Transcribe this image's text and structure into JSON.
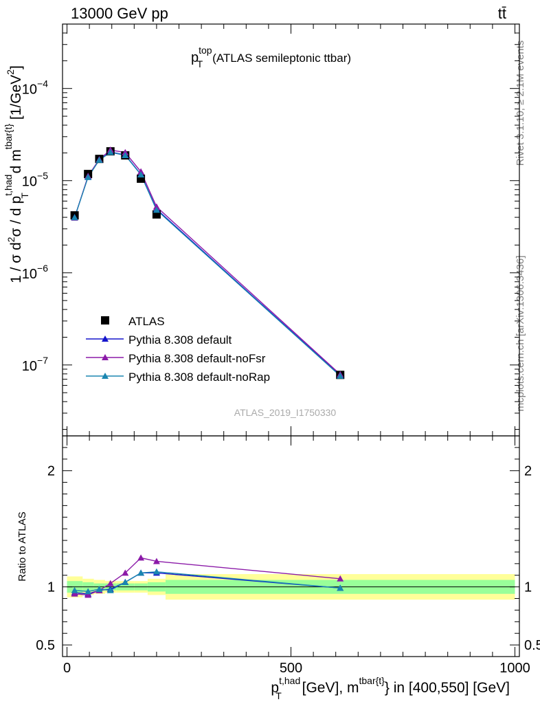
{
  "header": {
    "left": "13000 GeV pp",
    "right": "tt̄"
  },
  "side_labels": {
    "rivet": "Rivet 3.1.10, ≥ 2.1M events",
    "mcplots": "mcplots.cern.ch [arXiv:1306.3436]"
  },
  "watermark": "ATLAS_2019_I1750330",
  "chart_data": [
    {
      "type": "line",
      "panel": "main",
      "title": {
        "base": "p",
        "sup": "top",
        "sub": "T",
        "rest": "(ATLAS semileptonic ttbar)"
      },
      "ylabel": {
        "p1": "1 / σ d",
        "p1_sup": "2",
        "p2": "σ / d p",
        "p2_sup": "t,had",
        "p2_sub": "T",
        "p3": " d m",
        "p3_sup": "tbar{t}",
        "p4": " [1/GeV",
        "p4_sup": "2",
        "p5": "]"
      },
      "yscale": "log",
      "ylim": [
        1.7e-08,
        0.0005
      ],
      "xlim": [
        -10,
        1010
      ],
      "yticks": [
        {
          "value": 1e-07,
          "base": "10",
          "exp": "−7"
        },
        {
          "value": 1e-06,
          "base": "10",
          "exp": "−6"
        },
        {
          "value": 1e-05,
          "base": "10",
          "exp": "−5"
        },
        {
          "value": 0.0001,
          "base": "10",
          "exp": "−4"
        }
      ],
      "legend_position": "bottom-left",
      "data": {
        "name": "ATLAS",
        "color": "#000000",
        "marker": "square",
        "x": [
          17,
          47,
          72,
          97,
          130,
          165,
          200,
          610
        ],
        "y": [
          4.2e-06,
          1.18e-05,
          1.72e-05,
          2.08e-05,
          1.88e-05,
          1.05e-05,
          4.3e-06,
          7.8e-08
        ]
      },
      "series": [
        {
          "name": "Pythia 8.308 default",
          "color": "#1414cc",
          "marker": "triangle",
          "x": [
            17,
            47,
            72,
            97,
            130,
            165,
            200,
            610
          ],
          "y": [
            4e-06,
            1.1e-05,
            1.68e-05,
            2.05e-05,
            1.9e-05,
            1.17e-05,
            4.9e-06,
            7.7e-08
          ]
        },
        {
          "name": "Pythia 8.308 default-noFsr",
          "color": "#8b1aa8",
          "marker": "triangle",
          "x": [
            17,
            47,
            72,
            97,
            130,
            165,
            200,
            610
          ],
          "y": [
            3.95e-06,
            1.12e-05,
            1.7e-05,
            2.15e-05,
            2.02e-05,
            1.25e-05,
            5.2e-06,
            7.9e-08
          ]
        },
        {
          "name": "Pythia 8.308 default-noRap",
          "color": "#1a86b0",
          "marker": "triangle",
          "x": [
            17,
            47,
            72,
            97,
            130,
            165,
            200,
            610
          ],
          "y": [
            3.98e-06,
            1.09e-05,
            1.67e-05,
            2.03e-05,
            1.88e-05,
            1.16e-05,
            4.8e-06,
            7.6e-08
          ]
        }
      ]
    },
    {
      "type": "line",
      "panel": "ratio",
      "ylabel": "Ratio to ATLAS",
      "yscale": "linear",
      "ylim": [
        0.4,
        2.3
      ],
      "xlim": [
        -10,
        1010
      ],
      "yticks": [
        0.5,
        1,
        2
      ],
      "ytick_labels": [
        "0.5",
        "1",
        "2"
      ],
      "xticks": [
        0,
        500,
        1000
      ],
      "xtick_labels": [
        "0",
        "500",
        "1000"
      ],
      "xlabel": {
        "base": "p",
        "sup": "t,had",
        "sub": "T",
        "mid": " [GeV], m",
        "sup2": "tbar{t}",
        "rest": "} in [400,550] [GeV]"
      },
      "bands": {
        "stat_color": "#99ff99",
        "total_color": "#ffff99",
        "bins": [
          {
            "lo": 0,
            "hi": 35,
            "inner": [
              0.95,
              1.05
            ],
            "outer": [
              0.91,
              1.09
            ]
          },
          {
            "lo": 35,
            "hi": 60,
            "inner": [
              0.96,
              1.04
            ],
            "outer": [
              0.93,
              1.07
            ]
          },
          {
            "lo": 60,
            "hi": 85,
            "inner": [
              0.97,
              1.03
            ],
            "outer": [
              0.94,
              1.06
            ]
          },
          {
            "lo": 85,
            "hi": 110,
            "inner": [
              0.97,
              1.03
            ],
            "outer": [
              0.95,
              1.05
            ]
          },
          {
            "lo": 110,
            "hi": 150,
            "inner": [
              0.97,
              1.03
            ],
            "outer": [
              0.95,
              1.05
            ]
          },
          {
            "lo": 150,
            "hi": 180,
            "inner": [
              0.97,
              1.03
            ],
            "outer": [
              0.95,
              1.05
            ]
          },
          {
            "lo": 180,
            "hi": 220,
            "inner": [
              0.96,
              1.04
            ],
            "outer": [
              0.93,
              1.07
            ]
          },
          {
            "lo": 220,
            "hi": 1000,
            "inner": [
              0.94,
              1.06
            ],
            "outer": [
              0.89,
              1.11
            ]
          }
        ]
      },
      "series": [
        {
          "name": "Pythia 8.308 default",
          "color": "#1414cc",
          "x": [
            17,
            47,
            72,
            97,
            130,
            165,
            200,
            610
          ],
          "y": [
            0.95,
            0.94,
            0.97,
            0.98,
            1.04,
            1.12,
            1.12,
            0.99
          ]
        },
        {
          "name": "Pythia 8.308 default-noFsr",
          "color": "#8b1aa8",
          "x": [
            17,
            47,
            72,
            97,
            130,
            165,
            200,
            610
          ],
          "y": [
            0.94,
            0.93,
            0.97,
            1.03,
            1.12,
            1.25,
            1.22,
            1.07
          ]
        },
        {
          "name": "Pythia 8.308 default-noRap",
          "color": "#1a86b0",
          "x": [
            17,
            47,
            72,
            97,
            130,
            165,
            200,
            610
          ],
          "y": [
            0.97,
            0.96,
            0.98,
            0.97,
            1.04,
            1.12,
            1.13,
            0.99
          ]
        }
      ]
    }
  ]
}
